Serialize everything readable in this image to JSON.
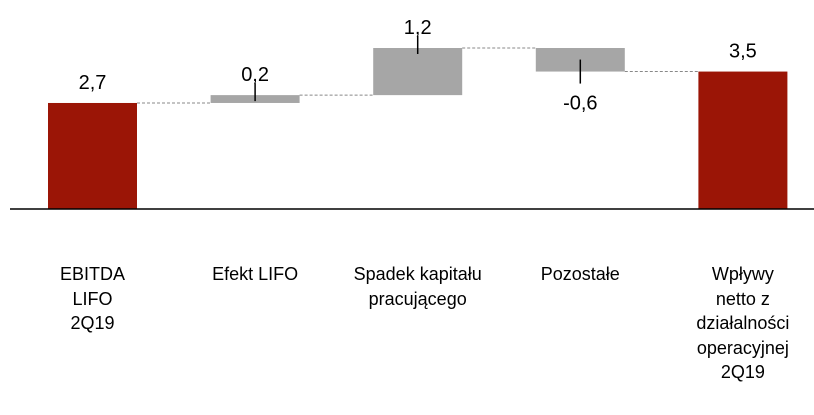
{
  "chart_data": {
    "type": "waterfall",
    "categories": [
      "EBITDA LIFO 2Q19",
      "Efekt LIFO",
      "Spadek kapitału pracującego",
      "Pozostałe",
      "Wpływy netto z działalności operacyjnej 2Q19"
    ],
    "values": [
      2.7,
      0.2,
      1.2,
      -0.6,
      3.5
    ],
    "value_labels": [
      "2,7",
      "0,2",
      "1,2",
      "-0,6",
      "3,5"
    ],
    "totals": [
      true,
      false,
      false,
      false,
      true
    ],
    "colors": [
      "#9b1506",
      "#a6a6a6",
      "#a6a6a6",
      "#a6a6a6",
      "#9b1506"
    ]
  }
}
